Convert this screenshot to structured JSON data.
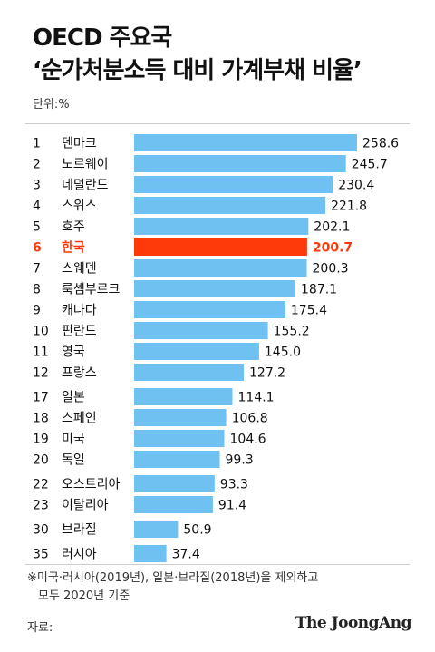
{
  "title_line1": "OECD 주요국",
  "title_line2": "‘순가처분소득 대비 가계부채 비율’",
  "unit": "단위:%",
  "footnote_line1": "※미국·러시아(2019년), 일본·브라질(2018년)을 제외하고",
  "footnote_line2": "모두 2020년 기준",
  "source": "자료:",
  "brand": "The JoongAng",
  "colors": {
    "bar": "#6ec1f0",
    "highlight_bar": "#ff3a0a",
    "highlight_text": "#ff3a0a",
    "divider": "#cccccc"
  },
  "chart_data": {
    "type": "bar",
    "orientation": "horizontal",
    "unit": "%",
    "highlight": "한국",
    "rows": [
      {
        "rank": "1",
        "country": "덴마크",
        "value": 258.6
      },
      {
        "rank": "2",
        "country": "노르웨이",
        "value": 245.7
      },
      {
        "rank": "3",
        "country": "네덜란드",
        "value": 230.4
      },
      {
        "rank": "4",
        "country": "스위스",
        "value": 221.8
      },
      {
        "rank": "5",
        "country": "호주",
        "value": 202.1
      },
      {
        "rank": "6",
        "country": "한국",
        "value": 200.7
      },
      {
        "rank": "7",
        "country": "스웨덴",
        "value": 200.3
      },
      {
        "rank": "8",
        "country": "룩셈부르크",
        "value": 187.1
      },
      {
        "rank": "9",
        "country": "캐나다",
        "value": 175.4
      },
      {
        "rank": "10",
        "country": "핀란드",
        "value": 155.2
      },
      {
        "rank": "11",
        "country": "영국",
        "value": 145.0
      },
      {
        "rank": "12",
        "country": "프랑스",
        "value": 127.2
      },
      {
        "rank": "17",
        "country": "일본",
        "value": 114.1
      },
      {
        "rank": "18",
        "country": "스페인",
        "value": 106.8
      },
      {
        "rank": "19",
        "country": "미국",
        "value": 104.6
      },
      {
        "rank": "20",
        "country": "독일",
        "value": 99.3
      },
      {
        "rank": "22",
        "country": "오스트리아",
        "value": 93.3
      },
      {
        "rank": "23",
        "country": "이탈리아",
        "value": 91.4
      },
      {
        "rank": "30",
        "country": "브라질",
        "value": 50.9
      },
      {
        "rank": "35",
        "country": "러시아",
        "value": 37.4
      }
    ]
  }
}
